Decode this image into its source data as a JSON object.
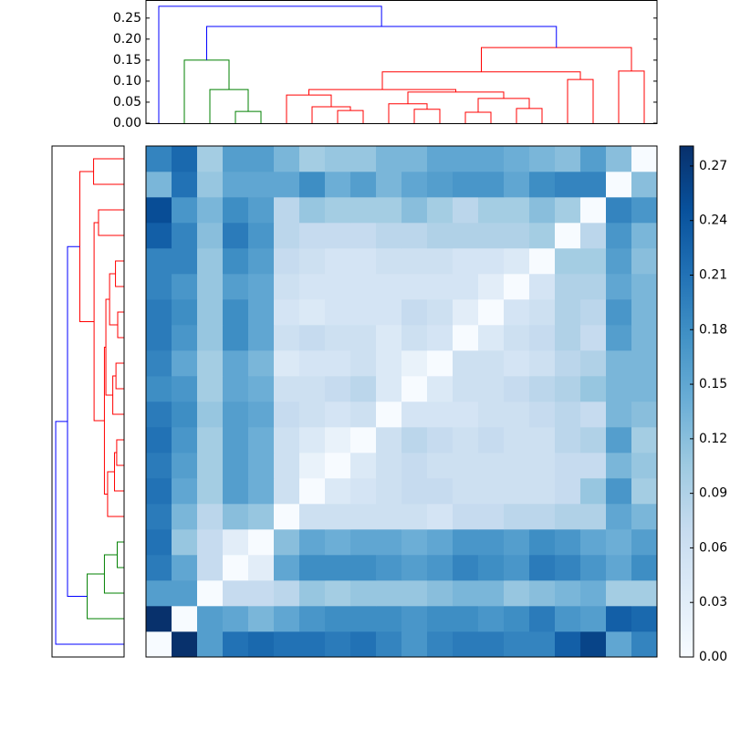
{
  "chart_data": [
    {
      "type": "heatmap",
      "matrix": [
        [
          0,
          0.28,
          0.16,
          0.21,
          0.22,
          0.21,
          0.21,
          0.2,
          0.21,
          0.19,
          0.17,
          0.19,
          0.2,
          0.2,
          0.19,
          0.19,
          0.23,
          0.26,
          0.15,
          0.19
        ],
        [
          0.28,
          0,
          0.16,
          0.15,
          0.13,
          0.15,
          0.17,
          0.18,
          0.18,
          0.18,
          0.17,
          0.18,
          0.18,
          0.17,
          0.18,
          0.2,
          0.17,
          0.16,
          0.23,
          0.22
        ],
        [
          0.16,
          0.16,
          0,
          0.07,
          0.07,
          0.08,
          0.11,
          0.1,
          0.11,
          0.11,
          0.11,
          0.12,
          0.13,
          0.13,
          0.11,
          0.12,
          0.13,
          0.14,
          0.1,
          0.1
        ],
        [
          0.2,
          0.15,
          0.07,
          0,
          0.03,
          0.15,
          0.18,
          0.18,
          0.18,
          0.17,
          0.16,
          0.17,
          0.19,
          0.18,
          0.17,
          0.2,
          0.19,
          0.17,
          0.15,
          0.18
        ],
        [
          0.21,
          0.11,
          0.07,
          0.03,
          0,
          0.12,
          0.15,
          0.14,
          0.15,
          0.15,
          0.14,
          0.15,
          0.17,
          0.17,
          0.16,
          0.18,
          0.17,
          0.15,
          0.14,
          0.16
        ],
        [
          0.2,
          0.13,
          0.08,
          0.12,
          0.11,
          0,
          0.06,
          0.06,
          0.06,
          0.06,
          0.06,
          0.05,
          0.07,
          0.07,
          0.08,
          0.08,
          0.09,
          0.09,
          0.15,
          0.13
        ],
        [
          0.21,
          0.15,
          0.1,
          0.16,
          0.14,
          0.06,
          0,
          0.04,
          0.05,
          0.06,
          0.07,
          0.07,
          0.06,
          0.06,
          0.06,
          0.06,
          0.07,
          0.11,
          0.17,
          0.1
        ],
        [
          0.2,
          0.16,
          0.1,
          0.16,
          0.14,
          0.06,
          0.02,
          0,
          0.04,
          0.06,
          0.07,
          0.06,
          0.06,
          0.06,
          0.06,
          0.06,
          0.07,
          0.07,
          0.13,
          0.11
        ],
        [
          0.21,
          0.17,
          0.1,
          0.16,
          0.14,
          0.06,
          0.04,
          0.02,
          0,
          0.06,
          0.08,
          0.07,
          0.06,
          0.07,
          0.06,
          0.06,
          0.08,
          0.09,
          0.16,
          0.1
        ],
        [
          0.2,
          0.18,
          0.11,
          0.16,
          0.15,
          0.07,
          0.06,
          0.05,
          0.06,
          0,
          0.05,
          0.05,
          0.05,
          0.06,
          0.06,
          0.07,
          0.08,
          0.07,
          0.13,
          0.12
        ],
        [
          0.18,
          0.17,
          0.1,
          0.15,
          0.14,
          0.06,
          0.06,
          0.07,
          0.08,
          0.04,
          0,
          0.04,
          0.06,
          0.06,
          0.07,
          0.08,
          0.09,
          0.11,
          0.13,
          0.13
        ],
        [
          0.19,
          0.15,
          0.1,
          0.15,
          0.13,
          0.04,
          0.05,
          0.05,
          0.06,
          0.04,
          0.02,
          0,
          0.06,
          0.06,
          0.05,
          0.06,
          0.08,
          0.09,
          0.13,
          0.13
        ],
        [
          0.2,
          0.17,
          0.11,
          0.18,
          0.15,
          0.06,
          0.07,
          0.06,
          0.06,
          0.04,
          0.06,
          0.05,
          0,
          0.04,
          0.06,
          0.07,
          0.09,
          0.07,
          0.16,
          0.13
        ],
        [
          0.2,
          0.18,
          0.11,
          0.18,
          0.15,
          0.05,
          0.04,
          0.05,
          0.05,
          0.05,
          0.07,
          0.06,
          0.03,
          0,
          0.05,
          0.06,
          0.09,
          0.08,
          0.17,
          0.13
        ],
        [
          0.19,
          0.17,
          0.11,
          0.16,
          0.15,
          0.06,
          0.05,
          0.05,
          0.05,
          0.05,
          0.05,
          0.05,
          0.05,
          0.03,
          0,
          0.05,
          0.09,
          0.09,
          0.15,
          0.13
        ],
        [
          0.19,
          0.19,
          0.11,
          0.18,
          0.16,
          0.07,
          0.06,
          0.05,
          0.05,
          0.06,
          0.06,
          0.06,
          0.05,
          0.05,
          0.04,
          0,
          0.1,
          0.1,
          0.16,
          0.12
        ],
        [
          0.23,
          0.19,
          0.12,
          0.2,
          0.17,
          0.08,
          0.07,
          0.07,
          0.07,
          0.08,
          0.08,
          0.09,
          0.09,
          0.09,
          0.09,
          0.1,
          0,
          0.08,
          0.17,
          0.13
        ],
        [
          0.25,
          0.17,
          0.13,
          0.18,
          0.16,
          0.08,
          0.11,
          0.1,
          0.1,
          0.1,
          0.12,
          0.1,
          0.08,
          0.1,
          0.1,
          0.12,
          0.1,
          0,
          0.19,
          0.17
        ],
        [
          0.13,
          0.21,
          0.11,
          0.15,
          0.15,
          0.15,
          0.18,
          0.14,
          0.16,
          0.13,
          0.15,
          0.16,
          0.17,
          0.17,
          0.15,
          0.18,
          0.19,
          0.19,
          0,
          0.12
        ],
        [
          0.19,
          0.22,
          0.1,
          0.16,
          0.16,
          0.13,
          0.1,
          0.11,
          0.11,
          0.13,
          0.13,
          0.15,
          0.15,
          0.15,
          0.14,
          0.13,
          0.12,
          0.16,
          0.12,
          0
        ]
      ],
      "colormap": [
        "#f7fbff",
        "#deebf7",
        "#c6dbef",
        "#9ecae1",
        "#6baed6",
        "#4292c6",
        "#2171b5",
        "#08519c",
        "#08306b"
      ],
      "clim": [
        0,
        0.281
      ],
      "colorbar_ticks": [
        {
          "value": 0,
          "label": "0.00"
        },
        {
          "value": 0.03,
          "label": "0.03"
        },
        {
          "value": 0.06,
          "label": "0.06"
        },
        {
          "value": 0.09,
          "label": "0.09"
        },
        {
          "value": 0.12,
          "label": "0.12"
        },
        {
          "value": 0.15,
          "label": "0.15"
        },
        {
          "value": 0.18,
          "label": "0.18"
        },
        {
          "value": 0.21,
          "label": "0.21"
        },
        {
          "value": 0.24,
          "label": "0.24"
        },
        {
          "value": 0.27,
          "label": "0.27"
        }
      ]
    },
    {
      "type": "dendrogram",
      "links": [
        {
          "x": [
            3,
            3,
            4,
            4
          ],
          "y": [
            0,
            0.028,
            0.028,
            0
          ],
          "color": "#008000"
        },
        {
          "x": [
            2,
            2,
            3.5,
            3.5
          ],
          "y": [
            0,
            0.08,
            0.08,
            0.028
          ],
          "color": "#008000"
        },
        {
          "x": [
            1,
            1,
            2.75,
            2.75
          ],
          "y": [
            0,
            0.15,
            0.15,
            0.08
          ],
          "color": "#008000"
        },
        {
          "x": [
            7,
            7,
            8,
            8
          ],
          "y": [
            0,
            0.03,
            0.03,
            0
          ],
          "color": "#ff0000"
        },
        {
          "x": [
            6,
            6,
            7.5,
            7.5
          ],
          "y": [
            0,
            0.039,
            0.039,
            0.03
          ],
          "color": "#ff0000"
        },
        {
          "x": [
            5,
            5,
            6.75,
            6.75
          ],
          "y": [
            0,
            0.067,
            0.067,
            0.039
          ],
          "color": "#ff0000"
        },
        {
          "x": [
            10,
            10,
            11,
            11
          ],
          "y": [
            0,
            0.033,
            0.033,
            0
          ],
          "color": "#ff0000"
        },
        {
          "x": [
            9,
            9,
            10.5,
            10.5
          ],
          "y": [
            0,
            0.046,
            0.046,
            0.033
          ],
          "color": "#ff0000"
        },
        {
          "x": [
            12,
            12,
            13,
            13
          ],
          "y": [
            0,
            0.026,
            0.026,
            0
          ],
          "color": "#ff0000"
        },
        {
          "x": [
            14,
            14,
            15,
            15
          ],
          "y": [
            0,
            0.035,
            0.035,
            0
          ],
          "color": "#ff0000"
        },
        {
          "x": [
            12.5,
            12.5,
            14.5,
            14.5
          ],
          "y": [
            0.026,
            0.059,
            0.059,
            0.035
          ],
          "color": "#ff0000"
        },
        {
          "x": [
            9.75,
            9.75,
            13.5,
            13.5
          ],
          "y": [
            0.046,
            0.074,
            0.074,
            0.059
          ],
          "color": "#ff0000"
        },
        {
          "x": [
            5.875,
            5.875,
            11.625,
            11.625
          ],
          "y": [
            0.067,
            0.08,
            0.08,
            0.074
          ],
          "color": "#ff0000"
        },
        {
          "x": [
            16,
            16,
            17,
            17
          ],
          "y": [
            0,
            0.104,
            0.104,
            0
          ],
          "color": "#ff0000"
        },
        {
          "x": [
            8.75,
            8.75,
            16.5,
            16.5
          ],
          "y": [
            0.08,
            0.122,
            0.122,
            0.104
          ],
          "color": "#ff0000"
        },
        {
          "x": [
            18,
            18,
            19,
            19
          ],
          "y": [
            0,
            0.124,
            0.124,
            0
          ],
          "color": "#ff0000"
        },
        {
          "x": [
            12.625,
            12.625,
            18.5,
            18.5
          ],
          "y": [
            0.122,
            0.18,
            0.18,
            0.124
          ],
          "color": "#ff0000"
        },
        {
          "x": [
            1.875,
            1.875,
            15.5625,
            15.5625
          ],
          "y": [
            0.15,
            0.23,
            0.23,
            0.18
          ],
          "color": "#0000ff"
        },
        {
          "x": [
            0,
            0,
            8.71875,
            8.71875
          ],
          "y": [
            0,
            0.278,
            0.278,
            0.23
          ],
          "color": "#0000ff"
        }
      ],
      "ylim": [
        0,
        0.293
      ],
      "yticks": [
        {
          "value": 0,
          "label": "0.00"
        },
        {
          "value": 0.05,
          "label": "0.05"
        },
        {
          "value": 0.1,
          "label": "0.10"
        },
        {
          "value": 0.15,
          "label": "0.15"
        },
        {
          "value": 0.2,
          "label": "0.20"
        },
        {
          "value": 0.25,
          "label": "0.25"
        }
      ]
    }
  ]
}
